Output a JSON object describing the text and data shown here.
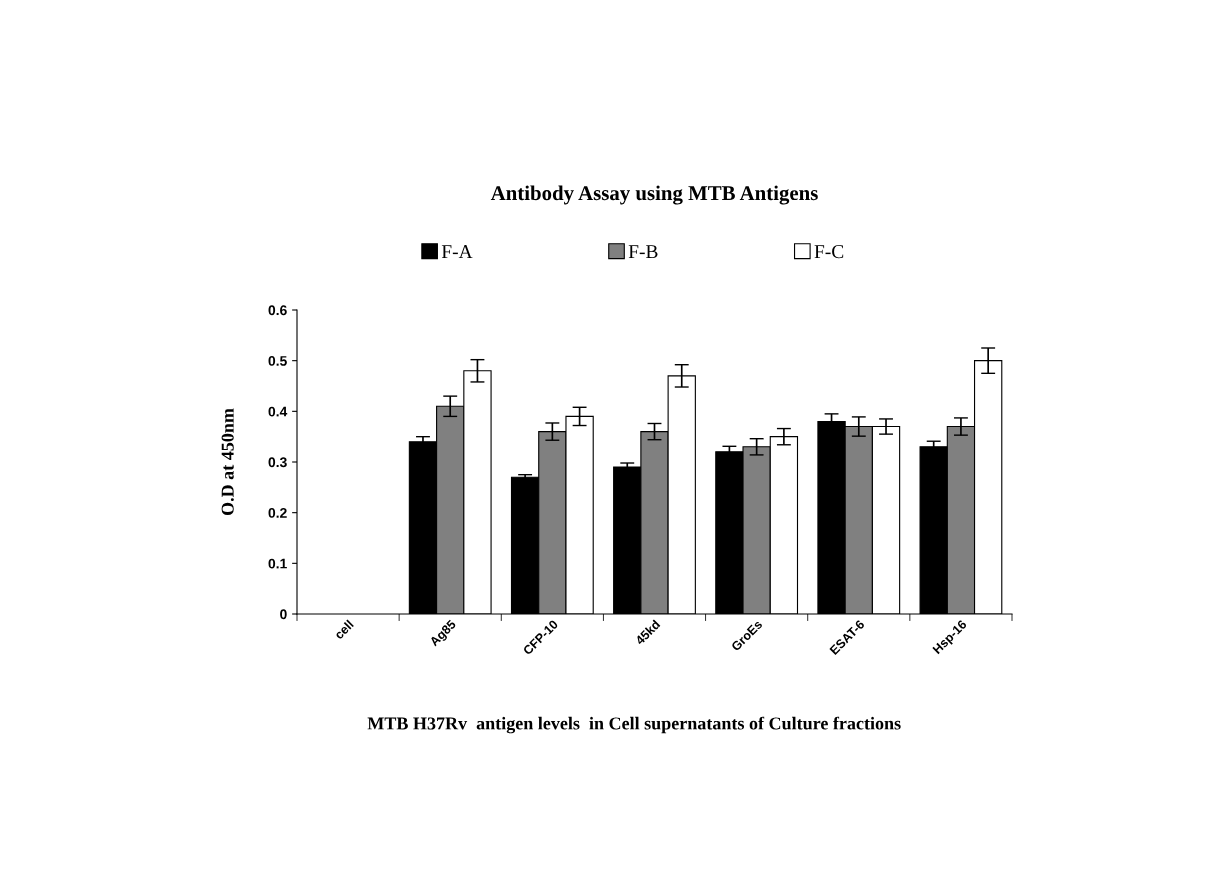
{
  "chart_data": {
    "type": "bar",
    "title": "Antibody Assay using MTB Antigens",
    "xlabel": "MTB H37Rv  antigen levels  in Cell supernatants of Culture fractions",
    "ylabel": "O.D at 450nm",
    "categories": [
      "cell",
      "Ag85",
      "CFP-10",
      "45kd",
      "GroEs",
      "ESAT-6",
      "Hsp-16"
    ],
    "series": [
      {
        "name": "F-A",
        "color": "#000000",
        "values": [
          null,
          0.34,
          0.27,
          0.29,
          0.32,
          0.38,
          0.33
        ],
        "errors": [
          null,
          0.01,
          0.005,
          0.008,
          0.011,
          0.015,
          0.011
        ]
      },
      {
        "name": "F-B",
        "color": "#808080",
        "values": [
          null,
          0.41,
          0.36,
          0.36,
          0.33,
          0.37,
          0.37
        ],
        "errors": [
          null,
          0.02,
          0.017,
          0.016,
          0.016,
          0.019,
          0.017
        ]
      },
      {
        "name": "F-C",
        "color": "#ffffff",
        "values": [
          null,
          0.48,
          0.39,
          0.47,
          0.35,
          0.37,
          0.5
        ],
        "errors": [
          null,
          0.022,
          0.018,
          0.022,
          0.016,
          0.015,
          0.025
        ]
      }
    ],
    "ylim": [
      0,
      0.6
    ],
    "yticks": [
      0,
      0.1,
      0.2,
      0.3,
      0.4,
      0.5,
      0.6
    ],
    "legend": "top",
    "grid": false
  }
}
